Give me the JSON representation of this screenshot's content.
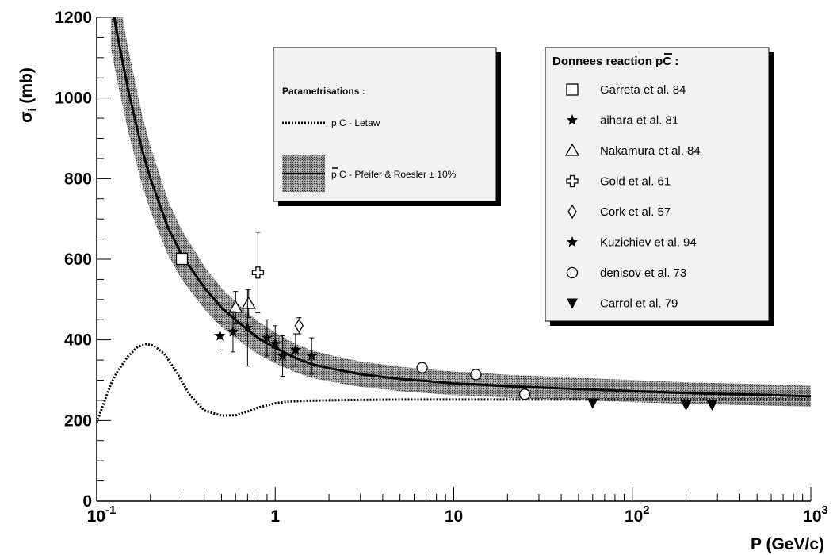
{
  "chart_data": {
    "type": "scatter",
    "x_scale": "log",
    "y_scale": "linear",
    "xlim": [
      0.1,
      1000
    ],
    "ylim": [
      0,
      1200
    ],
    "xlabel": "P (GeV/c)",
    "ylabel": "σ",
    "ylabel_sub": "i",
    "ylabel_unit": "(mb)",
    "x_ticks": [
      {
        "value": 0.1,
        "base": "10",
        "exp": "-1"
      },
      {
        "value": 1,
        "base": "1",
        "exp": ""
      },
      {
        "value": 10,
        "base": "10",
        "exp": ""
      },
      {
        "value": 100,
        "base": "10",
        "exp": "2"
      },
      {
        "value": 1000,
        "base": "10",
        "exp": "3"
      }
    ],
    "y_ticks": [
      0,
      200,
      400,
      600,
      800,
      1000,
      1200
    ],
    "grid": false,
    "band": {
      "name": "p̄ C - Pfeifer & Roesler ± 10%",
      "x": [
        0.12,
        0.13,
        0.15,
        0.18,
        0.2,
        0.25,
        0.3,
        0.4,
        0.5,
        0.6,
        0.7,
        0.8,
        1.0,
        1.3,
        1.6,
        2,
        3,
        5,
        7,
        10,
        13,
        20,
        50,
        100,
        200,
        500,
        700,
        1000
      ],
      "center": [
        1250,
        1160,
        1020,
        870,
        800,
        680,
        610,
        530,
        480,
        450,
        425,
        405,
        380,
        355,
        340,
        330,
        315,
        303,
        298,
        292,
        290,
        285,
        278,
        273,
        268,
        264,
        262,
        260
      ],
      "half_width": 0.1
    },
    "series": [
      {
        "name": "p C - Letaw",
        "style": "dotted",
        "x": [
          0.1,
          0.11,
          0.12,
          0.13,
          0.15,
          0.17,
          0.19,
          0.21,
          0.24,
          0.28,
          0.33,
          0.4,
          0.5,
          0.6,
          0.7,
          0.8,
          1.0,
          1.2,
          1.5,
          2,
          3,
          5,
          10,
          20,
          50,
          100,
          300,
          1000
        ],
        "y": [
          195,
          245,
          290,
          320,
          360,
          383,
          390,
          385,
          365,
          320,
          265,
          225,
          212,
          213,
          222,
          232,
          243,
          247,
          249,
          250,
          251,
          252,
          252,
          252,
          252,
          252,
          252,
          252
        ]
      }
    ],
    "data_sets": [
      {
        "name": "Garreta et al. 84",
        "marker": "square",
        "points": [
          {
            "x": 0.3,
            "y": 601
          }
        ]
      },
      {
        "name": "aihara et al. 81",
        "marker": "star",
        "points": [
          {
            "x": 0.49,
            "y": 410,
            "err": 35
          }
        ]
      },
      {
        "name": "Nakamura et al. 84",
        "marker": "triangle",
        "points": [
          {
            "x": 0.6,
            "y": 480,
            "err": 40
          },
          {
            "x": 0.71,
            "y": 490,
            "err": 35
          }
        ]
      },
      {
        "name": "Gold et al. 61",
        "marker": "cross",
        "points": [
          {
            "x": 0.8,
            "y": 567,
            "err": 100
          }
        ]
      },
      {
        "name": "Cork et al.  57",
        "marker": "diamond",
        "points": [
          {
            "x": 1.36,
            "y": 435,
            "err": 20
          }
        ]
      },
      {
        "name": "Kuzichiev et al. 94",
        "marker": "filled-star",
        "points": [
          {
            "x": 0.58,
            "y": 420,
            "err": 50
          },
          {
            "x": 0.7,
            "y": 430,
            "err": 95
          },
          {
            "x": 0.9,
            "y": 405,
            "err": 45
          },
          {
            "x": 1.0,
            "y": 390,
            "err": 45
          },
          {
            "x": 1.1,
            "y": 360,
            "err": 50
          },
          {
            "x": 1.3,
            "y": 375,
            "err": 40
          },
          {
            "x": 1.6,
            "y": 360,
            "err": 45
          }
        ]
      },
      {
        "name": "denisov et al. 73",
        "marker": "circle",
        "points": [
          {
            "x": 6.65,
            "y": 331
          },
          {
            "x": 13.3,
            "y": 314
          },
          {
            "x": 25,
            "y": 265
          }
        ]
      },
      {
        "name": "Carrol et al.  79",
        "marker": "triangle-down",
        "points": [
          {
            "x": 60,
            "y": 243
          },
          {
            "x": 200,
            "y": 238
          },
          {
            "x": 280,
            "y": 238
          }
        ]
      }
    ]
  },
  "legend_params": {
    "title": "Parametrisations :",
    "line_label": "p C - Letaw",
    "band_label_p": "p",
    "band_label_rest": " C - Pfeifer & Roesler  ± 10%"
  },
  "legend_data": {
    "title_pre": "Donnees reaction ",
    "title_p": "p",
    "title_post": "C :"
  }
}
